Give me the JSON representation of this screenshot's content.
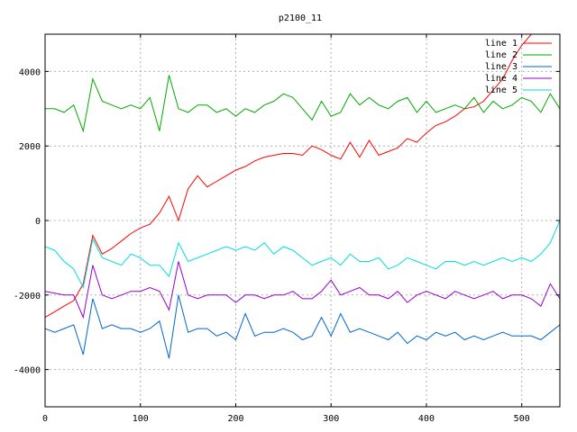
{
  "chart_data": {
    "type": "line",
    "title": "p2100_11",
    "xlabel": "",
    "ylabel": "",
    "xlim": [
      0,
      540
    ],
    "ylim": [
      -5000,
      5000
    ],
    "x_ticks": [
      0,
      100,
      200,
      300,
      400,
      500
    ],
    "y_ticks": [
      -4000,
      -2000,
      0,
      2000,
      4000
    ],
    "x_tick_labels": [
      "0",
      "100",
      "200",
      "300",
      "400",
      "500"
    ],
    "y_tick_labels": [
      "-4000",
      "-2000",
      "0",
      "2000",
      "4000"
    ],
    "grid": true,
    "legend_position": "top-right",
    "x_step": 10,
    "series": [
      {
        "name": "line 1",
        "color": "#ff0000",
        "values": [
          -2600,
          -2450,
          -2300,
          -2150,
          -1700,
          -400,
          -900,
          -750,
          -550,
          -350,
          -200,
          -100,
          200,
          650,
          0,
          850,
          1200,
          900,
          1050,
          1200,
          1350,
          1450,
          1600,
          1700,
          1750,
          1800,
          1800,
          1750,
          2000,
          1900,
          1750,
          1650,
          2100,
          1700,
          2150,
          1750,
          1850,
          1950,
          2200,
          2100,
          2350,
          2550,
          2650,
          2800,
          3000,
          3050,
          3200,
          3500,
          3800,
          4300,
          4700,
          5000,
          5000,
          5000,
          5000
        ]
      },
      {
        "name": "line 2",
        "color": "#00aa00",
        "values": [
          3000,
          3000,
          2900,
          3100,
          2400,
          3800,
          3200,
          3100,
          3000,
          3100,
          3000,
          3300,
          2400,
          3900,
          3000,
          2900,
          3100,
          3100,
          2900,
          3000,
          2800,
          3000,
          2900,
          3100,
          3200,
          3400,
          3300,
          3000,
          2700,
          3200,
          2800,
          2900,
          3400,
          3100,
          3300,
          3100,
          3000,
          3200,
          3300,
          2900,
          3200,
          2900,
          3000,
          3100,
          3000,
          3300,
          2900,
          3200,
          3000,
          3100,
          3300,
          3200,
          2900,
          3400,
          3000
        ]
      },
      {
        "name": "line 3",
        "color": "#0066cc",
        "values": [
          -2900,
          -3000,
          -2900,
          -2800,
          -3600,
          -2100,
          -2900,
          -2800,
          -2900,
          -2900,
          -3000,
          -2900,
          -2700,
          -3700,
          -2000,
          -3000,
          -2900,
          -2900,
          -3100,
          -3000,
          -3200,
          -2500,
          -3100,
          -3000,
          -3000,
          -2900,
          -3000,
          -3200,
          -3100,
          -2600,
          -3100,
          -2500,
          -3000,
          -2900,
          -3000,
          -3100,
          -3200,
          -3000,
          -3300,
          -3100,
          -3200,
          -3000,
          -3100,
          -3000,
          -3200,
          -3100,
          -3200,
          -3100,
          -3000,
          -3100,
          -3100,
          -3100,
          -3200,
          -3000,
          -2800
        ]
      },
      {
        "name": "line 4",
        "color": "#9900cc",
        "values": [
          -1900,
          -1950,
          -2000,
          -2000,
          -2600,
          -1200,
          -2000,
          -2100,
          -2000,
          -1900,
          -1900,
          -1800,
          -1900,
          -2400,
          -1100,
          -2000,
          -2100,
          -2000,
          -2000,
          -2000,
          -2200,
          -2000,
          -2000,
          -2100,
          -2000,
          -2000,
          -1900,
          -2100,
          -2100,
          -1900,
          -1600,
          -2000,
          -1900,
          -1800,
          -2000,
          -2000,
          -2100,
          -1900,
          -2200,
          -2000,
          -1900,
          -2000,
          -2100,
          -1900,
          -2000,
          -2100,
          -2000,
          -1900,
          -2100,
          -2000,
          -2000,
          -2100,
          -2300,
          -1700,
          -2100
        ]
      },
      {
        "name": "line 5",
        "color": "#00dddd",
        "values": [
          -700,
          -800,
          -1100,
          -1300,
          -1800,
          -500,
          -1000,
          -1100,
          -1200,
          -900,
          -1000,
          -1200,
          -1200,
          -1500,
          -600,
          -1100,
          -1000,
          -900,
          -800,
          -700,
          -800,
          -700,
          -800,
          -600,
          -900,
          -700,
          -800,
          -1000,
          -1200,
          -1100,
          -1000,
          -1200,
          -900,
          -1100,
          -1100,
          -1000,
          -1300,
          -1200,
          -1000,
          -1100,
          -1200,
          -1300,
          -1100,
          -1100,
          -1200,
          -1100,
          -1200,
          -1100,
          -1000,
          -1100,
          -1000,
          -1100,
          -900,
          -600,
          0
        ]
      }
    ]
  }
}
